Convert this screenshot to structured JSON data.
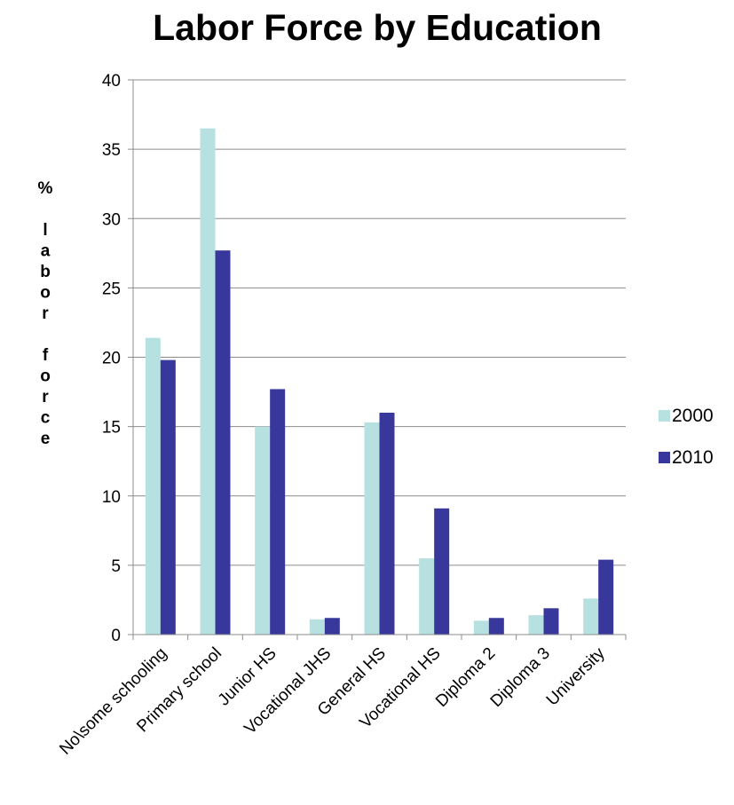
{
  "chart_data": {
    "type": "bar",
    "title": "Labor Force by Education",
    "ylabel": "% labor force",
    "xlabel": "",
    "ylim": [
      0,
      40
    ],
    "yticks": [
      0,
      5,
      10,
      15,
      20,
      25,
      30,
      35,
      40
    ],
    "categories": [
      "No\\some schooling",
      "Primary school",
      "Junior HS",
      "Vocational JHS",
      "General HS",
      "Vocational HS",
      "Diploma 2",
      "Diploma 3",
      "University"
    ],
    "series": [
      {
        "name": "2000",
        "color": "#b7e0e1",
        "values": [
          21.4,
          36.5,
          15.0,
          1.1,
          15.3,
          5.5,
          1.0,
          1.4,
          2.6
        ]
      },
      {
        "name": "2010",
        "color": "#38389c",
        "values": [
          19.8,
          27.7,
          17.7,
          1.2,
          16.0,
          9.1,
          1.2,
          1.9,
          5.4
        ]
      }
    ],
    "grid": true,
    "legend": "right"
  }
}
